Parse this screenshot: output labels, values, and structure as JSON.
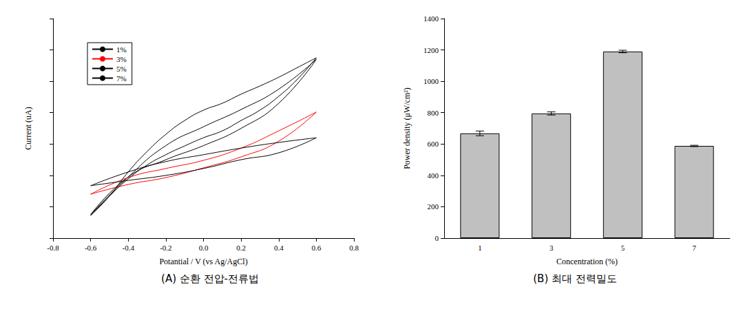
{
  "chart_data": [
    {
      "type": "line",
      "title": "(A) 순환 전압-전류법",
      "x_label": "Potantial / V (vs Ag/AgCl)",
      "y_label": "Current (uA)",
      "xlim": [
        -0.8,
        0.8
      ],
      "xticks": [
        -0.8,
        -0.6,
        -0.4,
        -0.2,
        {
          "value": 0,
          "label": "0.0"
        },
        0.2,
        0.4,
        0.6,
        0.8
      ],
      "ylim": [
        0,
        7
      ],
      "yticks": [
        0,
        1,
        2,
        3,
        4,
        5,
        6,
        7
      ],
      "tick_labels": "x",
      "legend": "upper left",
      "grid": false,
      "series": [
        {
          "name": "1%",
          "color": "#000000",
          "x": [
            -0.6,
            -0.4,
            -0.2,
            0.0,
            0.2,
            0.4,
            0.6,
            0.4,
            0.2,
            0.0,
            -0.2,
            -0.4,
            -0.6
          ],
          "values": [
            0.75,
            1.95,
            2.95,
            3.55,
            4.1,
            4.75,
            5.7,
            4.3,
            3.5,
            2.95,
            2.5,
            1.95,
            0.75
          ]
        },
        {
          "name": "3%",
          "color": "#ff0000",
          "x": [
            -0.6,
            -0.4,
            -0.2,
            0.0,
            0.2,
            0.4,
            0.6,
            0.4,
            0.2,
            0.0,
            -0.2,
            -0.4,
            -0.6
          ],
          "values": [
            1.4,
            1.93,
            2.22,
            2.48,
            2.87,
            3.42,
            4.02,
            3.09,
            2.59,
            2.24,
            1.93,
            1.71,
            1.4
          ]
        },
        {
          "name": "5%",
          "color": "#000000",
          "x": [
            -0.6,
            -0.5,
            -0.4,
            -0.3,
            -0.2,
            -0.1,
            0.0,
            0.1,
            0.2,
            0.3,
            0.4,
            0.5,
            0.6,
            0.5,
            0.4,
            0.3,
            0.2,
            0.1,
            0.0,
            -0.1,
            -0.2,
            -0.3,
            -0.4,
            -0.5,
            -0.6
          ],
          "values": [
            0.72,
            1.34,
            2.11,
            2.76,
            3.31,
            3.75,
            4.08,
            4.3,
            4.59,
            4.85,
            5.13,
            5.44,
            5.75,
            5.07,
            4.52,
            4.08,
            3.75,
            3.42,
            3.2,
            2.94,
            2.66,
            2.33,
            1.89,
            1.34,
            0.72
          ]
        },
        {
          "name": "7%",
          "color": "#000000",
          "x": [
            -0.6,
            -0.4,
            -0.2,
            0.0,
            0.2,
            0.4,
            0.6,
            0.4,
            0.2,
            0.0,
            -0.2,
            -0.4,
            -0.6
          ],
          "values": [
            1.67,
            2.11,
            2.44,
            2.66,
            2.87,
            3.05,
            3.2,
            2.72,
            2.5,
            2.22,
            2.0,
            1.84,
            1.67
          ]
        }
      ]
    },
    {
      "type": "bar",
      "title": "(B) 최대 전력밀도",
      "x_label": "Concentration (%)",
      "y_label": "Power density (μW/cm²)",
      "categories": [
        "1",
        "3",
        "5",
        "7"
      ],
      "values": [
        668,
        795,
        1190,
        588
      ],
      "errors": [
        15,
        10,
        8,
        4
      ],
      "color": "#c0c0c0",
      "ylim": [
        0,
        1400
      ],
      "yticks": [
        0,
        200,
        400,
        600,
        800,
        1000,
        1200,
        1400
      ],
      "grid": false
    }
  ]
}
